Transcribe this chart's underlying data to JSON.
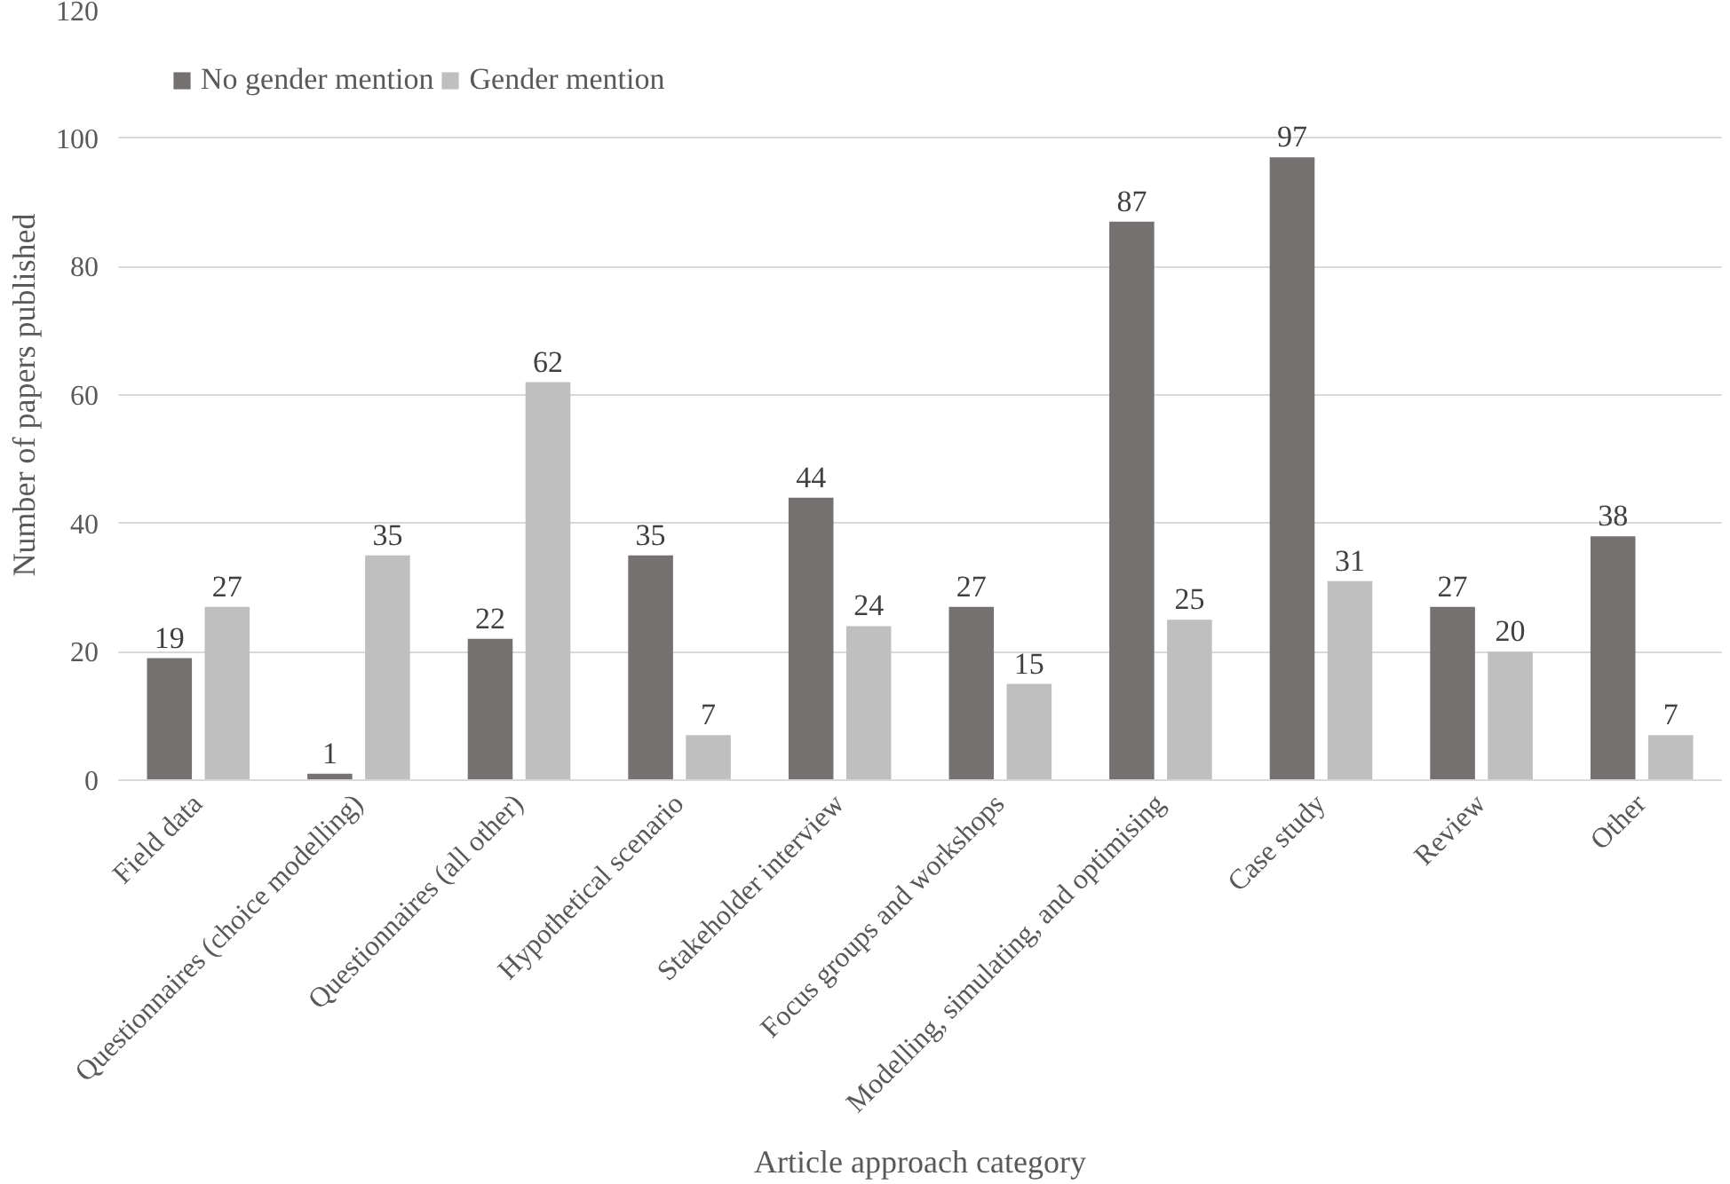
{
  "chart_data": {
    "type": "bar",
    "xlabel": "Article approach category",
    "ylabel": "Number of papers published",
    "categories": [
      "Field data",
      "Questionnaires (choice modelling)",
      "Questionnaires (all other)",
      "Hypothetical scenario",
      "Stakeholder interview",
      "Focus groups and workshops",
      "Modelling, simulating, and optimising",
      "Case study",
      "Review",
      "Other"
    ],
    "series": [
      {
        "name": "No gender mention",
        "color": "#767171",
        "values": [
          19,
          1,
          22,
          35,
          44,
          27,
          87,
          97,
          27,
          38
        ]
      },
      {
        "name": "Gender mention",
        "color": "#bfbfbf",
        "values": [
          27,
          35,
          62,
          7,
          24,
          15,
          25,
          31,
          20,
          7
        ]
      }
    ],
    "ylim": [
      0,
      120
    ],
    "yticks": [
      0,
      20,
      40,
      60,
      80,
      100,
      120
    ],
    "grid": "y",
    "legend": "top left",
    "data_labels": true
  }
}
